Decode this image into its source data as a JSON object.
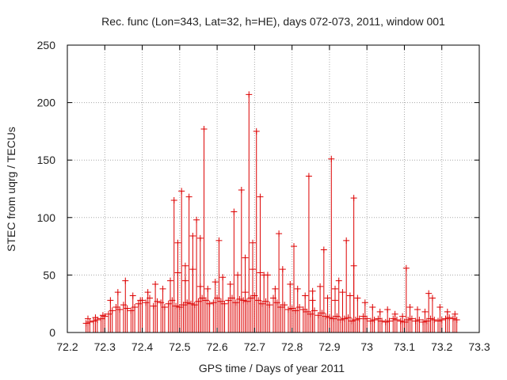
{
  "chart_data": {
    "type": "scatter",
    "title": "Rec. func (Lon=343, Lat=32, h=HE), days 072-073, 2011, window 001",
    "xlabel": "GPS time / Days of year 2011",
    "ylabel": "STEC from uqrg / TECUs",
    "xlim": [
      72.2,
      73.3
    ],
    "ylim": [
      0,
      250
    ],
    "xticks": [
      "72.2",
      "72.3",
      "72.4",
      "72.5",
      "72.6",
      "72.7",
      "72.8",
      "72.9",
      "73",
      "73.1",
      "73.2",
      "73.3"
    ],
    "yticks": [
      "0",
      "50",
      "100",
      "150",
      "200",
      "250"
    ],
    "grid": true,
    "marker": "+",
    "impulses": true,
    "series": [
      {
        "name": "STEC",
        "color": "#dd0000",
        "x": [
          72.25,
          72.26,
          72.27,
          72.28,
          72.29,
          72.3,
          72.31,
          72.32,
          72.33,
          72.34,
          72.35,
          72.36,
          72.37,
          72.38,
          72.39,
          72.4,
          72.41,
          72.42,
          72.43,
          72.44,
          72.45,
          72.46,
          72.47,
          72.48,
          72.49,
          72.5,
          72.51,
          72.52,
          72.53,
          72.54,
          72.55,
          72.56,
          72.57,
          72.58,
          72.59,
          72.6,
          72.61,
          72.62,
          72.63,
          72.64,
          72.65,
          72.66,
          72.67,
          72.68,
          72.69,
          72.7,
          72.71,
          72.72,
          72.73,
          72.74,
          72.75,
          72.76,
          72.77,
          72.78,
          72.79,
          72.8,
          72.81,
          72.82,
          72.83,
          72.84,
          72.85,
          72.86,
          72.87,
          72.88,
          72.89,
          72.9,
          72.91,
          72.92,
          72.93,
          72.94,
          72.95,
          72.96,
          72.97,
          72.98,
          72.99,
          73.0,
          73.01,
          73.02,
          73.03,
          73.04,
          73.05,
          73.06,
          73.07,
          73.08,
          73.09,
          73.1,
          73.11,
          73.12,
          73.13,
          73.14,
          73.15,
          73.16,
          73.17,
          73.18,
          73.19,
          73.2,
          73.21,
          73.22,
          73.23,
          73.24,
          72.255,
          72.275,
          72.295,
          72.315,
          72.335,
          72.355,
          72.375,
          72.395,
          72.415,
          72.435,
          72.455,
          72.475,
          72.495,
          72.515,
          72.535,
          72.555,
          72.575,
          72.595,
          72.615,
          72.635,
          72.655,
          72.675,
          72.695,
          72.715,
          72.735,
          72.755,
          72.775,
          72.795,
          72.815,
          72.835,
          72.855,
          72.875,
          72.895,
          72.915,
          72.935,
          72.955,
          72.975,
          72.995,
          73.015,
          73.035,
          73.055,
          73.075,
          73.095,
          73.115,
          73.135,
          73.155,
          73.175,
          73.195,
          73.215,
          73.235,
          72.485,
          72.505,
          72.525,
          72.545,
          72.565,
          72.605,
          72.645,
          72.665,
          72.685,
          72.705,
          72.725,
          72.765,
          72.805,
          72.845,
          72.885,
          72.905,
          72.925,
          72.945,
          72.965,
          73.105,
          73.165,
          72.495,
          72.515,
          72.535,
          72.555,
          72.675,
          72.695,
          72.715,
          72.855,
          72.915,
          72.965
        ],
        "y": [
          8,
          9,
          10,
          11,
          12,
          14,
          16,
          19,
          22,
          20,
          24,
          21,
          19,
          22,
          25,
          28,
          26,
          30,
          23,
          27,
          26,
          22,
          25,
          28,
          23,
          22,
          24,
          26,
          25,
          24,
          27,
          30,
          28,
          25,
          26,
          30,
          27,
          25,
          28,
          30,
          26,
          29,
          28,
          27,
          30,
          32,
          28,
          25,
          27,
          24,
          30,
          26,
          22,
          24,
          20,
          21,
          19,
          22,
          20,
          18,
          16,
          19,
          15,
          17,
          14,
          13,
          12,
          14,
          11,
          12,
          13,
          10,
          11,
          12,
          14,
          12,
          10,
          11,
          12,
          10,
          9,
          10,
          12,
          11,
          10,
          9,
          11,
          12,
          10,
          11,
          9,
          10,
          12,
          11,
          10,
          11,
          12,
          13,
          12,
          11,
          12,
          13,
          15,
          28,
          35,
          45,
          32,
          28,
          35,
          42,
          38,
          45,
          52,
          45,
          55,
          40,
          38,
          44,
          48,
          42,
          50,
          35,
          55,
          52,
          50,
          38,
          55,
          42,
          38,
          32,
          36,
          40,
          30,
          28,
          35,
          32,
          30,
          26,
          22,
          18,
          20,
          16,
          14,
          22,
          20,
          18,
          30,
          22,
          18,
          16,
          115,
          123,
          118,
          98,
          177,
          80,
          105,
          124,
          207,
          175,
          50,
          86,
          75,
          136,
          72,
          151,
          45,
          80,
          117,
          56,
          34,
          78,
          58,
          84,
          82,
          65,
          78,
          118,
          28,
          38,
          58
        ]
      }
    ]
  }
}
